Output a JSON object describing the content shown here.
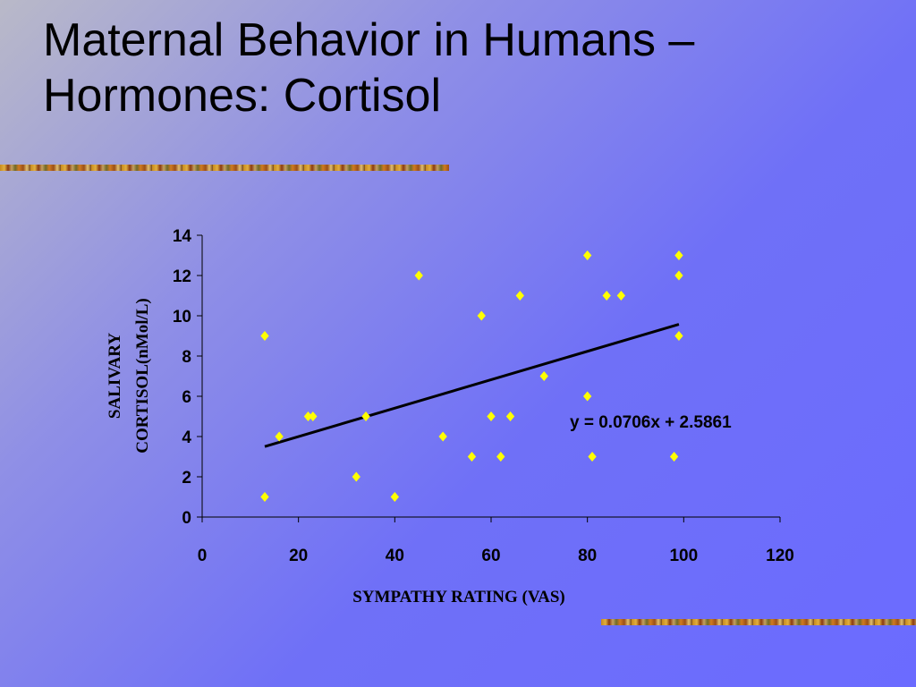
{
  "slide": {
    "title_line1": "Maternal Behavior in Humans –",
    "title_line2": "Hormones: Cortisol"
  },
  "chart_data": {
    "type": "scatter",
    "xlabel": "SYMPATHY RATING (VAS)",
    "ylabel_line1": "SALIVARY",
    "ylabel_line2": "CORTISOL(nMol/L)",
    "xlim": [
      0,
      120
    ],
    "ylim": [
      0,
      14
    ],
    "xticks": [
      0,
      20,
      40,
      60,
      80,
      100,
      120
    ],
    "yticks": [
      0,
      2,
      4,
      6,
      8,
      10,
      12,
      14
    ],
    "grid": false,
    "marker_color": "#ffff00",
    "points": [
      {
        "x": 13,
        "y": 9
      },
      {
        "x": 13,
        "y": 1
      },
      {
        "x": 16,
        "y": 4
      },
      {
        "x": 22,
        "y": 5
      },
      {
        "x": 23,
        "y": 5
      },
      {
        "x": 32,
        "y": 2
      },
      {
        "x": 34,
        "y": 5
      },
      {
        "x": 40,
        "y": 1
      },
      {
        "x": 45,
        "y": 12
      },
      {
        "x": 50,
        "y": 4
      },
      {
        "x": 56,
        "y": 3
      },
      {
        "x": 58,
        "y": 10
      },
      {
        "x": 60,
        "y": 5
      },
      {
        "x": 62,
        "y": 3
      },
      {
        "x": 64,
        "y": 5
      },
      {
        "x": 66,
        "y": 11
      },
      {
        "x": 71,
        "y": 7
      },
      {
        "x": 80,
        "y": 13
      },
      {
        "x": 80,
        "y": 6
      },
      {
        "x": 81,
        "y": 3
      },
      {
        "x": 84,
        "y": 11
      },
      {
        "x": 87,
        "y": 11
      },
      {
        "x": 98,
        "y": 3
      },
      {
        "x": 99,
        "y": 13
      },
      {
        "x": 99,
        "y": 12
      },
      {
        "x": 99,
        "y": 9
      }
    ],
    "trendline": {
      "slope": 0.0706,
      "intercept": 2.5861,
      "x_range": [
        13,
        99
      ],
      "label": "y = 0.0706x + 2.5861"
    }
  }
}
